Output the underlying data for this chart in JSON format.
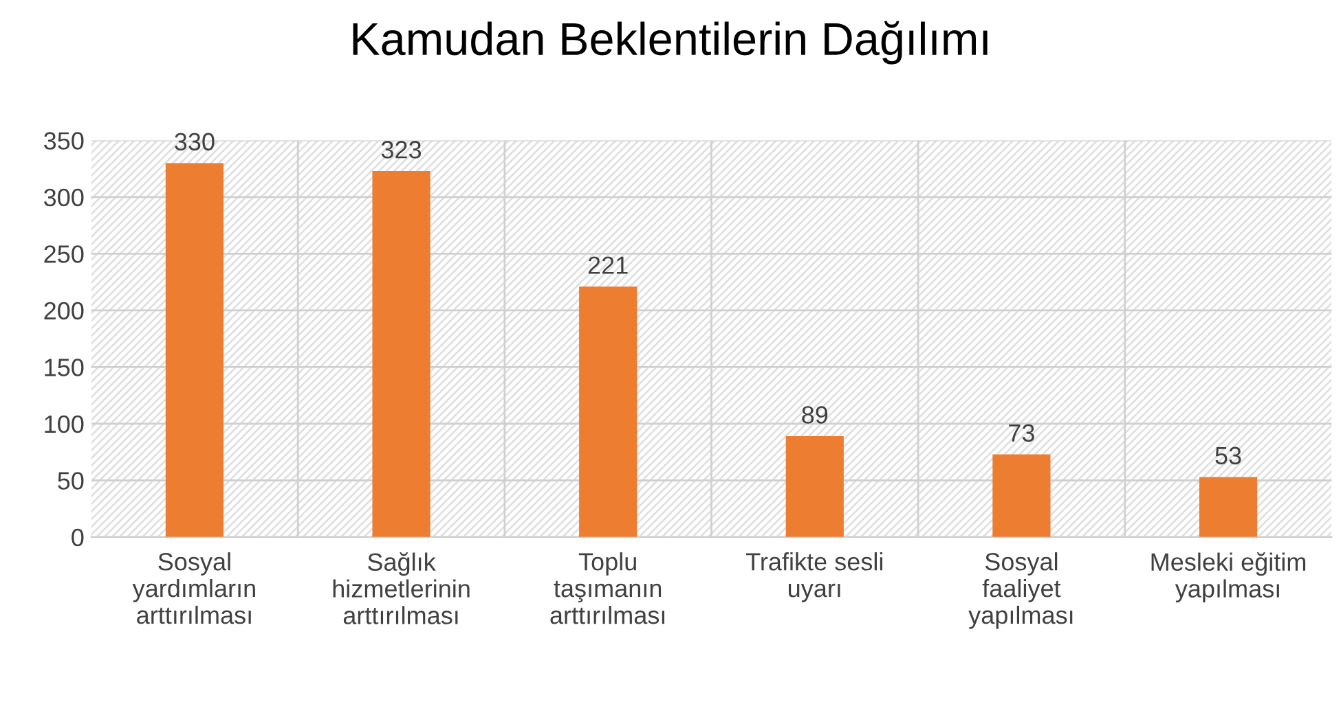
{
  "chart_data": {
    "type": "bar",
    "title": "Kamudan Beklentilerin Dağılımı",
    "categories": [
      "Sosyal yardımların arttırılması",
      "Sağlık hizmetlerinin arttırılması",
      "Toplu taşımanın arttırılması",
      "Trafikte sesli uyarı",
      "Sosyal faaliyet yapılması",
      "Mesleki eğitim yapılması"
    ],
    "values": [
      330,
      323,
      221,
      89,
      73,
      53
    ],
    "color": "#ed7d31",
    "ylim": [
      0,
      350
    ],
    "yticks": [
      0,
      50,
      100,
      150,
      200,
      250,
      300,
      350
    ],
    "grid": true,
    "data_labels": true
  }
}
